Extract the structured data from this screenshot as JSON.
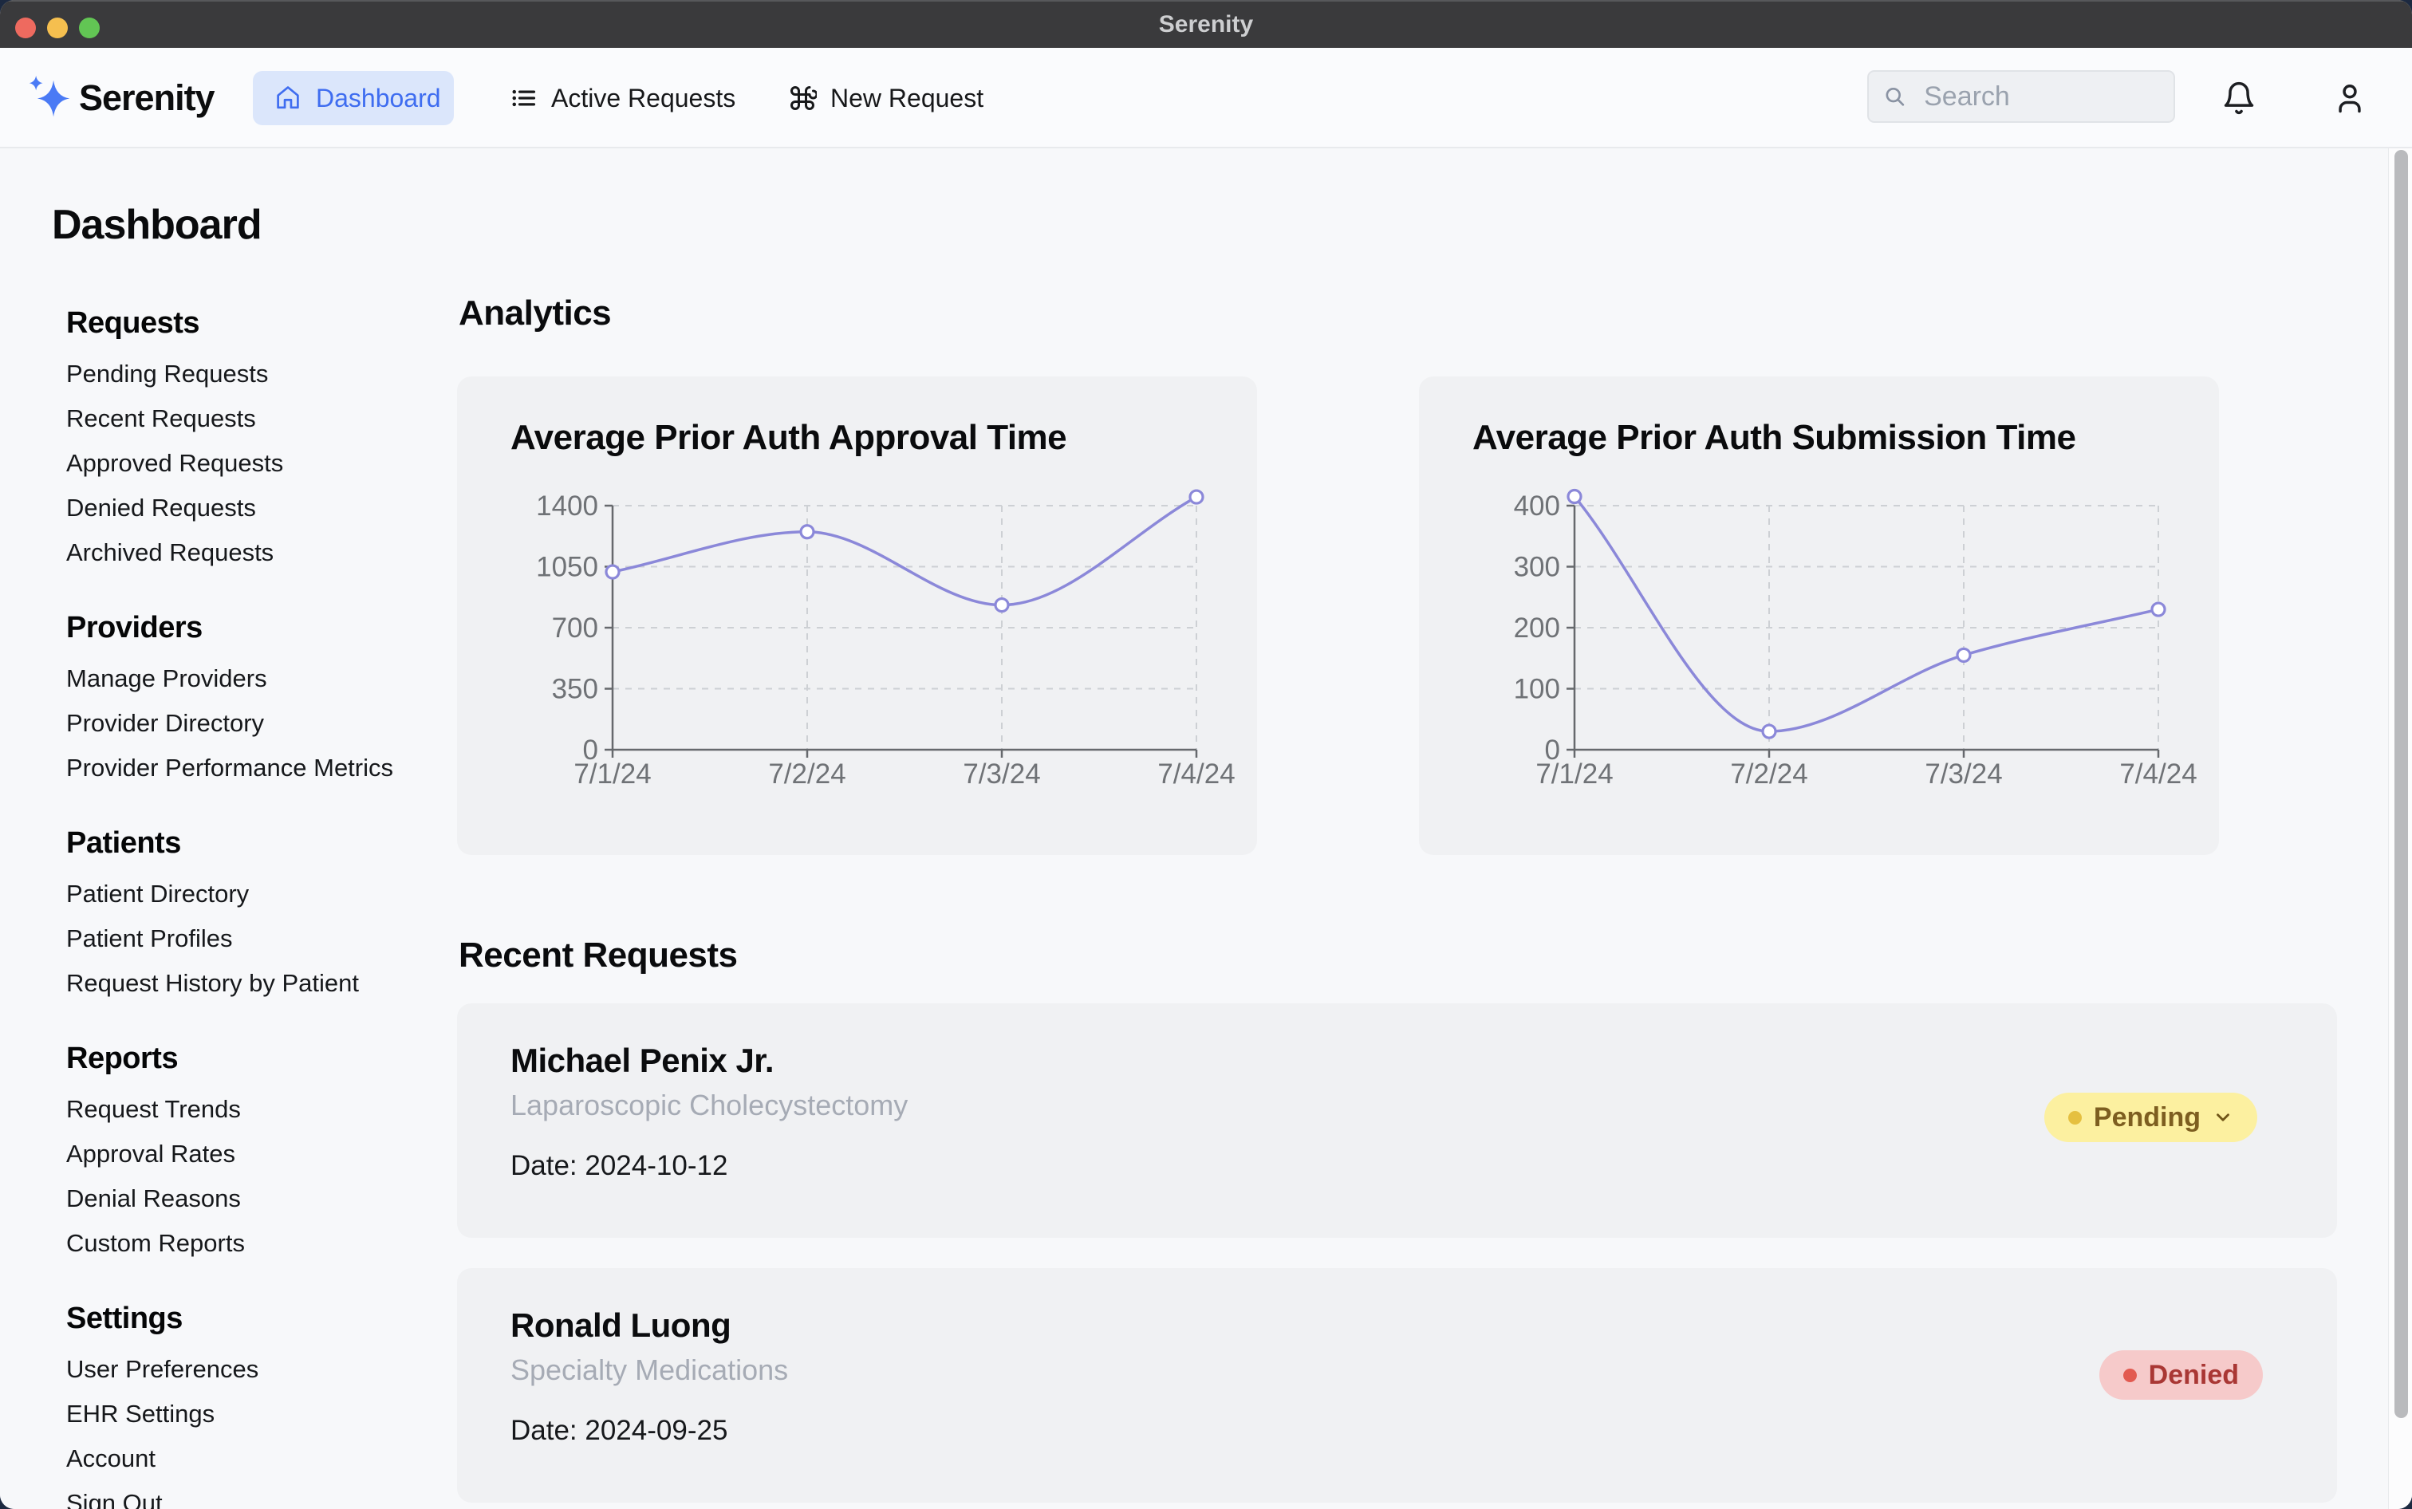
{
  "window": {
    "title": "Serenity"
  },
  "navbar": {
    "brand": "Serenity",
    "tabs": [
      {
        "label": "Dashboard",
        "icon": "home-icon",
        "active": true
      },
      {
        "label": "Active Requests",
        "icon": "list-icon",
        "active": false
      },
      {
        "label": "New Request",
        "icon": "command-icon",
        "active": false
      }
    ],
    "search_placeholder": "Search"
  },
  "page_title": "Dashboard",
  "sidebar": {
    "sections": [
      {
        "title": "Requests",
        "items": [
          "Pending Requests",
          "Recent Requests",
          "Approved Requests",
          "Denied Requests",
          "Archived Requests"
        ]
      },
      {
        "title": "Providers",
        "items": [
          "Manage Providers",
          "Provider Directory",
          "Provider Performance Metrics"
        ]
      },
      {
        "title": "Patients",
        "items": [
          "Patient Directory",
          "Patient Profiles",
          "Request History by Patient"
        ]
      },
      {
        "title": "Reports",
        "items": [
          "Request Trends",
          "Approval Rates",
          "Denial Reasons",
          "Custom Reports"
        ]
      },
      {
        "title": "Settings",
        "items": [
          "User Preferences",
          "EHR Settings",
          "Account",
          "Sign Out"
        ]
      }
    ]
  },
  "main": {
    "analytics_heading": "Analytics",
    "recent_heading": "Recent Requests"
  },
  "chart_data": [
    {
      "type": "line",
      "title": "Average Prior Auth Approval Time",
      "x": [
        "7/1/24",
        "7/2/24",
        "7/3/24",
        "7/4/24"
      ],
      "values": [
        1020,
        1250,
        830,
        1450
      ],
      "y_ticks": [
        0,
        350,
        700,
        1050,
        1400
      ],
      "ylim": [
        0,
        1400
      ],
      "grid": "dashed",
      "legend": "none",
      "line_color": "#8b88d9"
    },
    {
      "type": "line",
      "title": "Average Prior Auth Submission Time",
      "x": [
        "7/1/24",
        "7/2/24",
        "7/3/24",
        "7/4/24"
      ],
      "values": [
        415,
        30,
        155,
        230
      ],
      "y_ticks": [
        0,
        100,
        200,
        300,
        400
      ],
      "ylim": [
        0,
        400
      ],
      "grid": "dashed",
      "legend": "none",
      "line_color": "#8b88d9"
    }
  ],
  "recent_requests": [
    {
      "patient": "Michael Penix Jr.",
      "procedure": "Laparoscopic Cholecystectomy",
      "date": "Date: 2024-10-12",
      "status": "Pending",
      "variant": "pending",
      "chevron": true
    },
    {
      "patient": "Ronald Luong",
      "procedure": "Specialty Medications",
      "date": "Date: 2024-09-25",
      "status": "Denied",
      "variant": "denied",
      "chevron": false
    }
  ],
  "colors": {
    "accent_blue": "#4a7af5",
    "tab_active_bg": "#dbe6fb",
    "tab_active_text": "#3f6df0",
    "chart_line": "#8b88d9",
    "axis": "#66696d",
    "gridline": "#cdd0d4",
    "tick_text": "#6f7276",
    "pending_bg": "#fcf0a0",
    "pending_dot": "#e5c040",
    "pending_text": "#7d5e20",
    "denied_bg": "#f6caca",
    "denied_dot": "#e25a50",
    "denied_text": "#a93734",
    "titlebar_bg": "#3a3a3c",
    "card_bg": "#f0f1f3"
  }
}
